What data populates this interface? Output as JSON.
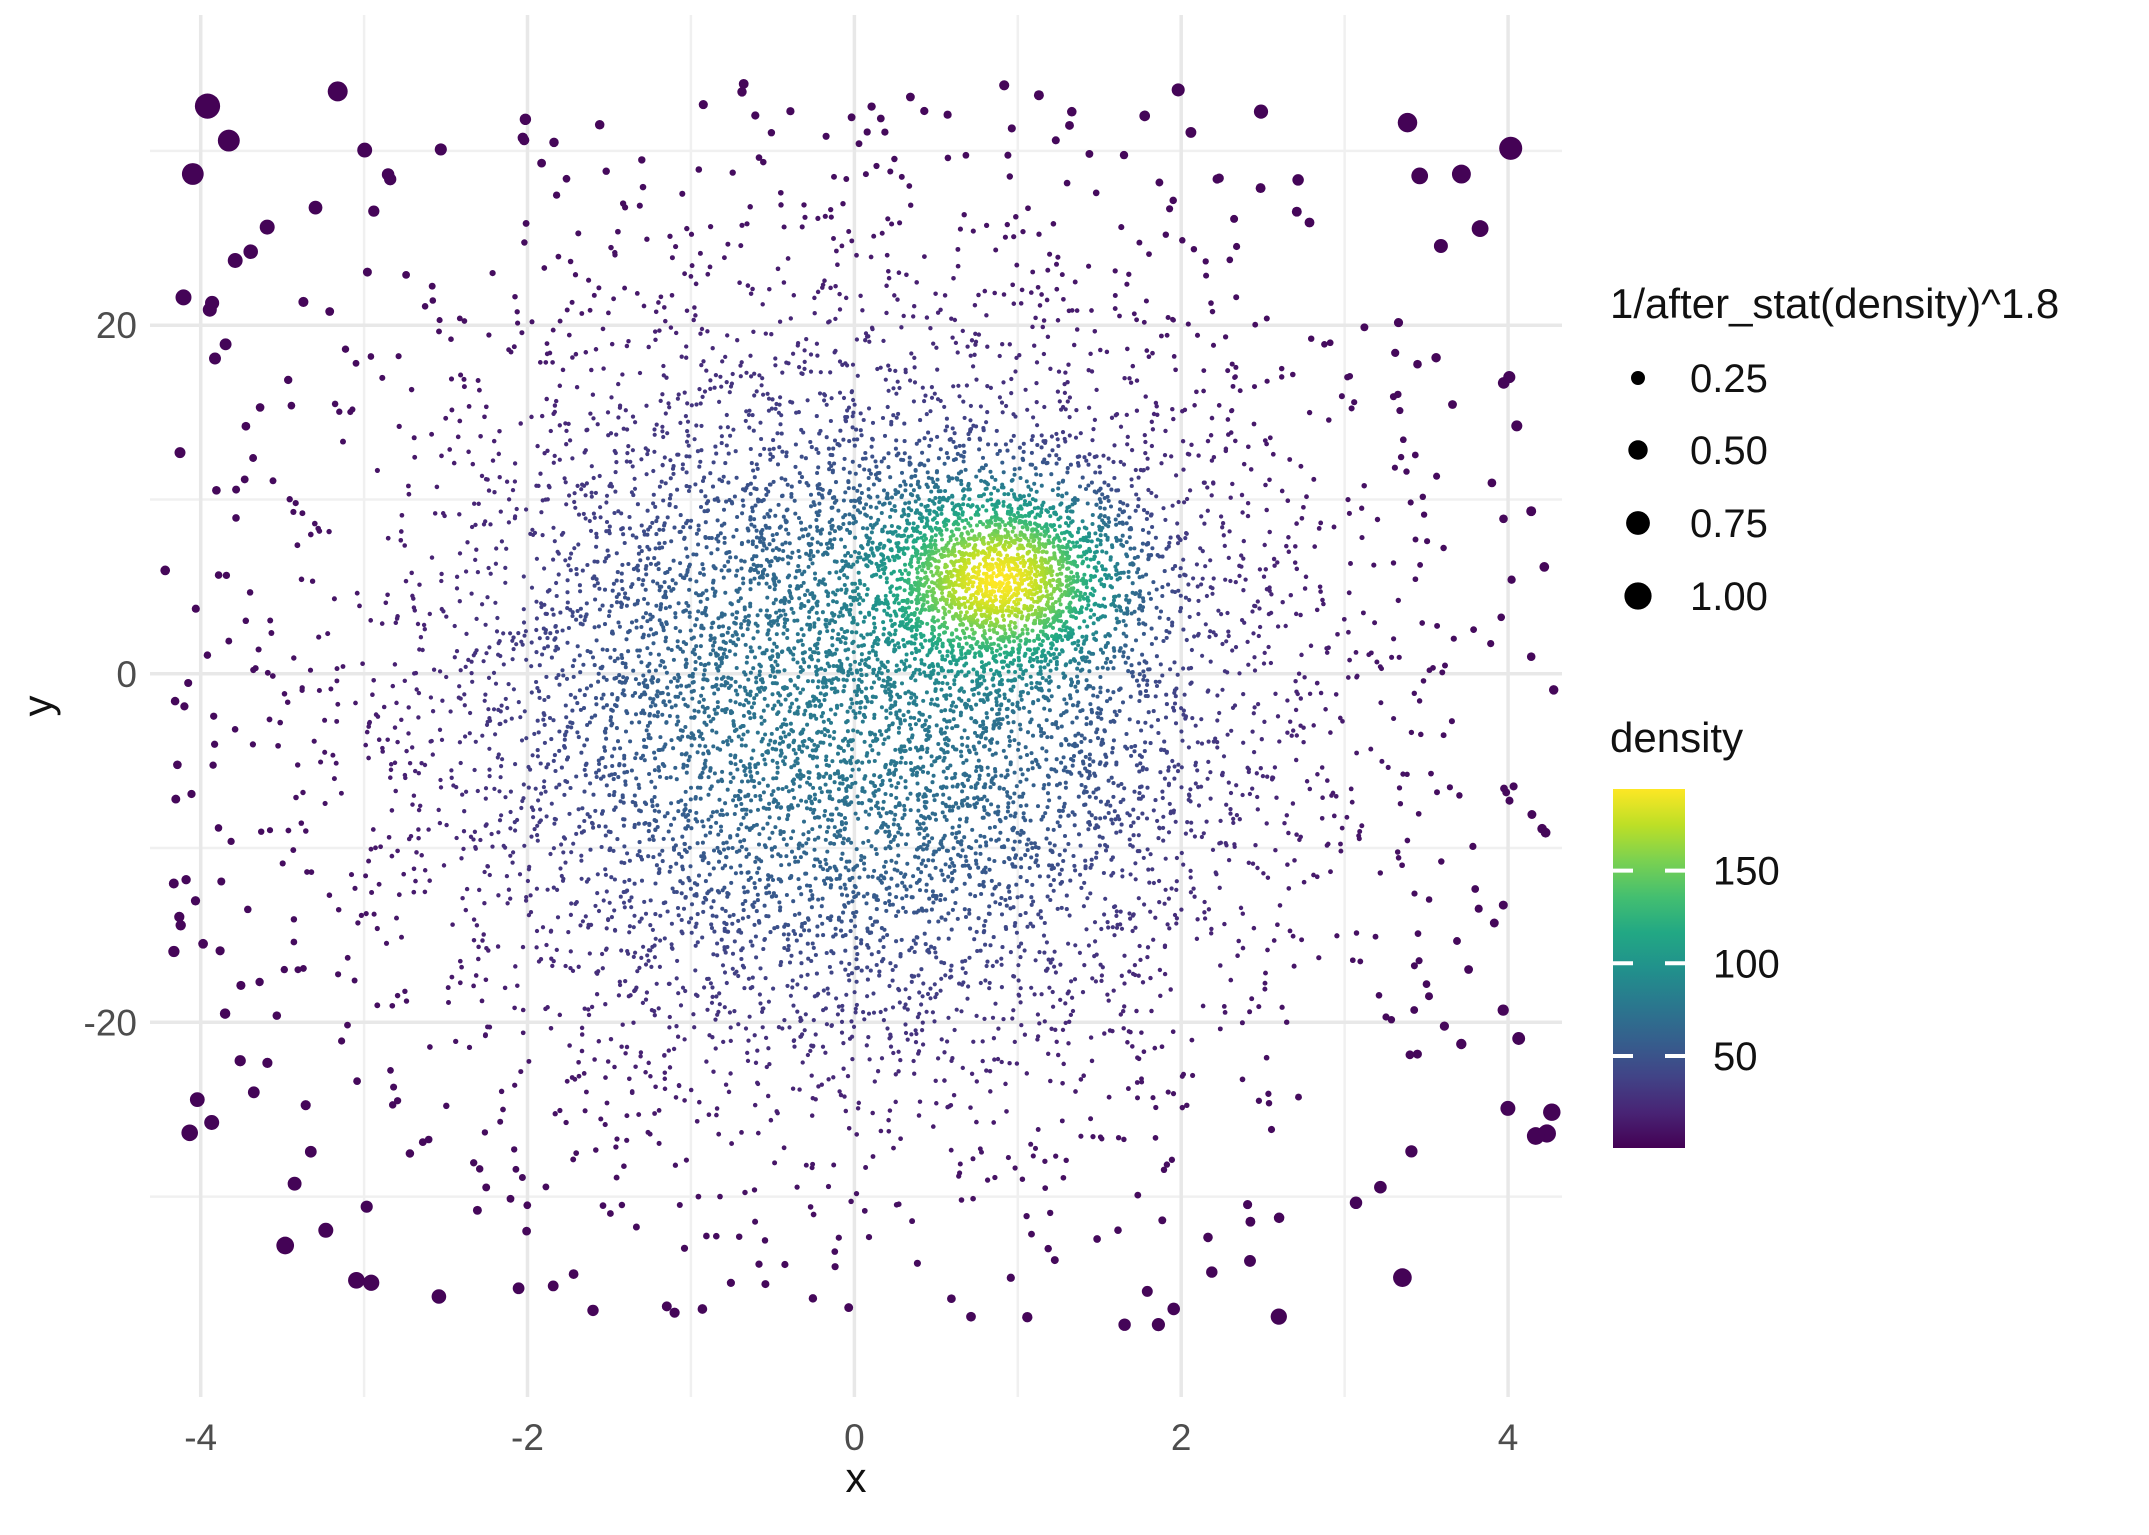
{
  "figure": {
    "background": "#ffffff",
    "kind": "ggplot-style scatter plot"
  },
  "text_colors": {
    "tick_label": "#4d4d4d",
    "axis_title": "#111111",
    "legend_text": "#111111"
  },
  "chart_data": {
    "type": "scatter",
    "title": "",
    "x_axis": {
      "title": "x",
      "lim": [
        -4.31,
        4.33
      ],
      "major_ticks": [
        {
          "value": -4,
          "label": "-4"
        },
        {
          "value": -2,
          "label": "-2"
        },
        {
          "value": 0,
          "label": "0"
        },
        {
          "value": 2,
          "label": "2"
        },
        {
          "value": 4,
          "label": "4"
        }
      ],
      "minor_gridlines": [
        -3,
        -1,
        1,
        3
      ]
    },
    "y_axis": {
      "title": "y",
      "lim": [
        -41.5,
        37.8
      ],
      "major_ticks": [
        {
          "value": 20,
          "label": "20"
        },
        {
          "value": 0,
          "label": "0"
        },
        {
          "value": -20,
          "label": "-20"
        }
      ],
      "minor_gridlines": [
        30,
        10,
        -10,
        -30
      ]
    },
    "grid": {
      "major_color": "#e8e8e8",
      "minor_color": "#f0f0f0"
    },
    "size_legend": {
      "title": "1/after_stat(density)^1.8",
      "key_color": "#000000",
      "entries": [
        {
          "label": "0.25",
          "radius": 7.0
        },
        {
          "label": "0.50",
          "radius": 9.7
        },
        {
          "label": "0.75",
          "radius": 11.9
        },
        {
          "label": "1.00",
          "radius": 13.6
        }
      ]
    },
    "color_legend": {
      "title": "density",
      "range": [
        0.4,
        194
      ],
      "ticks": [
        {
          "value": 150,
          "label": "150"
        },
        {
          "value": 100,
          "label": "100"
        },
        {
          "value": 50,
          "label": "50"
        }
      ],
      "palette_name": "viridis",
      "palette": [
        "#440154",
        "#482475",
        "#414487",
        "#355f8d",
        "#2a788e",
        "#21918c",
        "#22a884",
        "#44bf70",
        "#7ad151",
        "#bddf26",
        "#fde725"
      ]
    },
    "points": {
      "n": 10000,
      "seed": 42,
      "mixture": [
        {
          "weight": 0.76,
          "mean": [
            0.0,
            -1.5
          ],
          "sd": [
            1.35,
            11.3
          ]
        },
        {
          "weight": 0.18,
          "mean": [
            0.9,
            5.5
          ],
          "sd": [
            0.42,
            3.0
          ]
        },
        {
          "weight": 0.06,
          "mean": [
            0.0,
            -2.0
          ],
          "sd": [
            2.4,
            19.0
          ]
        }
      ],
      "clip_x": [
        -4.26,
        4.3
      ],
      "clip_y": [
        -37.4,
        33.9
      ],
      "color_gamma": 0.72,
      "size_power": 1.8,
      "size_value_cap": 1.3,
      "radius_range": [
        2.0,
        15.6
      ]
    }
  }
}
